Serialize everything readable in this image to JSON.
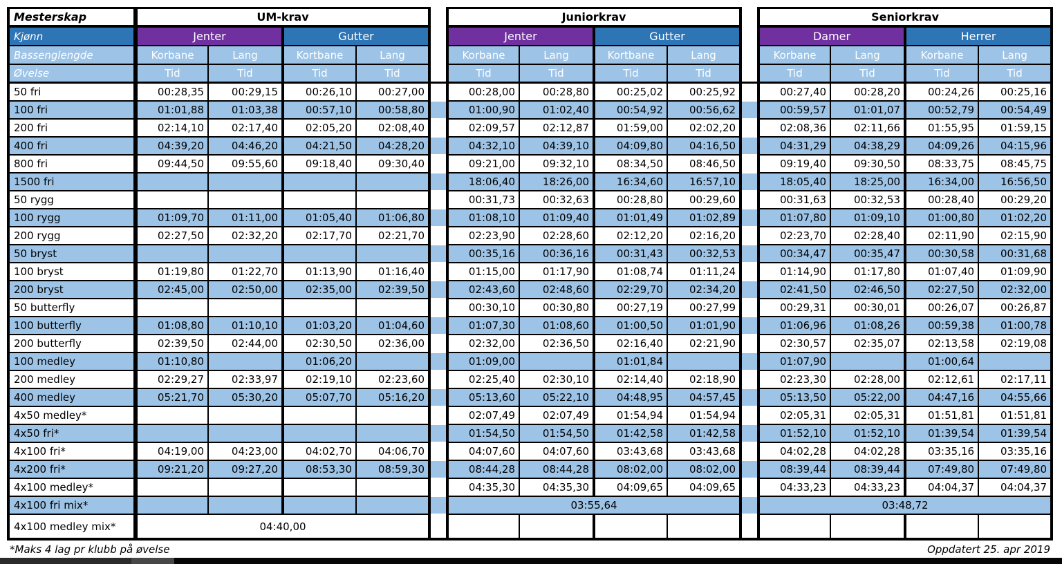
{
  "colors": {
    "purple": "#7030A0",
    "blue": "#2E75B6",
    "light_blue": "#9DC3E6",
    "section_title_bg": "#D9E1F1",
    "border": "#000000"
  },
  "table": {
    "corner_label": "Mesterskap",
    "row2_label": "Kjønn",
    "row3_label": "Bassenglengde",
    "row4_label": "Øvelse",
    "tid_label": "Tid",
    "sections": [
      {
        "title": "UM-krav",
        "groups": [
          {
            "label": "Jenter",
            "accent": "purple",
            "cols": [
              "Korbane",
              "Lang"
            ]
          },
          {
            "label": "Gutter",
            "accent": "blue",
            "cols": [
              "Kortbane",
              "Lang"
            ]
          }
        ]
      },
      {
        "title": "Juniorkrav",
        "groups": [
          {
            "label": "Jenter",
            "accent": "purple",
            "cols": [
              "Korbane",
              "Lang"
            ]
          },
          {
            "label": "Gutter",
            "accent": "blue",
            "cols": [
              "Kortbane",
              "Lang"
            ]
          }
        ]
      },
      {
        "title": "Seniorkrav",
        "groups": [
          {
            "label": "Damer",
            "accent": "purple",
            "cols": [
              "Korbane",
              "Lang"
            ]
          },
          {
            "label": "Herrer",
            "accent": "blue",
            "cols": [
              "Korbane",
              "Lang"
            ]
          }
        ]
      }
    ],
    "rows": [
      {
        "event": "50 fri",
        "um": [
          "00:28,35",
          "00:29,15",
          "00:26,10",
          "00:27,00"
        ],
        "junior": [
          "00:28,00",
          "00:28,80",
          "00:25,02",
          "00:25,92"
        ],
        "senior": [
          "00:27,40",
          "00:28,20",
          "00:24,26",
          "00:25,16"
        ]
      },
      {
        "event": "100 fri",
        "um": [
          "01:01,88",
          "01:03,38",
          "00:57,10",
          "00:58,80"
        ],
        "junior": [
          "01:00,90",
          "01:02,40",
          "00:54,92",
          "00:56,62"
        ],
        "senior": [
          "00:59,57",
          "01:01,07",
          "00:52,79",
          "00:54,49"
        ]
      },
      {
        "event": "200 fri",
        "um": [
          "02:14,10",
          "02:17,40",
          "02:05,20",
          "02:08,40"
        ],
        "junior": [
          "02:09,57",
          "02:12,87",
          "01:59,00",
          "02:02,20"
        ],
        "senior": [
          "02:08,36",
          "02:11,66",
          "01:55,95",
          "01:59,15"
        ]
      },
      {
        "event": "400 fri",
        "um": [
          "04:39,20",
          "04:46,20",
          "04:21,50",
          "04:28,20"
        ],
        "junior": [
          "04:32,10",
          "04:39,10",
          "04:09,80",
          "04:16,50"
        ],
        "senior": [
          "04:31,29",
          "04:38,29",
          "04:09,26",
          "04:15,96"
        ]
      },
      {
        "event": "800 fri",
        "um": [
          "09:44,50",
          "09:55,60",
          "09:18,40",
          "09:30,40"
        ],
        "junior": [
          "09:21,00",
          "09:32,10",
          "08:34,50",
          "08:46,50"
        ],
        "senior": [
          "09:19,40",
          "09:30,50",
          "08:33,75",
          "08:45,75"
        ]
      },
      {
        "event": "1500 fri",
        "um": [
          "",
          "",
          "",
          ""
        ],
        "junior": [
          "18:06,40",
          "18:26,00",
          "16:34,60",
          "16:57,10"
        ],
        "senior": [
          "18:05,40",
          "18:25,00",
          "16:34,00",
          "16:56,50"
        ]
      },
      {
        "event": "50 rygg",
        "um": [
          "",
          "",
          "",
          ""
        ],
        "junior": [
          "00:31,73",
          "00:32,63",
          "00:28,80",
          "00:29,60"
        ],
        "senior": [
          "00:31,63",
          "00:32,53",
          "00:28,40",
          "00:29,20"
        ]
      },
      {
        "event": "100 rygg",
        "um": [
          "01:09,70",
          "01:11,00",
          "01:05,40",
          "01:06,80"
        ],
        "junior": [
          "01:08,10",
          "01:09,40",
          "01:01,49",
          "01:02,89"
        ],
        "senior": [
          "01:07,80",
          "01:09,10",
          "01:00,80",
          "01:02,20"
        ]
      },
      {
        "event": "200 rygg",
        "um": [
          "02:27,50",
          "02:32,20",
          "02:17,70",
          "02:21,70"
        ],
        "junior": [
          "02:23,90",
          "02:28,60",
          "02:12,20",
          "02:16,20"
        ],
        "senior": [
          "02:23,70",
          "02:28,40",
          "02:11,90",
          "02:15,90"
        ]
      },
      {
        "event": "50 bryst",
        "um": [
          "",
          "",
          "",
          ""
        ],
        "junior": [
          "00:35,16",
          "00:36,16",
          "00:31,43",
          "00:32,53"
        ],
        "senior": [
          "00:34,47",
          "00:35,47",
          "00:30,58",
          "00:31,68"
        ]
      },
      {
        "event": "100 bryst",
        "um": [
          "01:19,80",
          "01:22,70",
          "01:13,90",
          "01:16,40"
        ],
        "junior": [
          "01:15,00",
          "01:17,90",
          "01:08,74",
          "01:11,24"
        ],
        "senior": [
          "01:14,90",
          "01:17,80",
          "01:07,40",
          "01:09,90"
        ]
      },
      {
        "event": "200 bryst",
        "um": [
          "02:45,00",
          "02:50,00",
          "02:35,00",
          "02:39,50"
        ],
        "junior": [
          "02:43,60",
          "02:48,60",
          "02:29,70",
          "02:34,20"
        ],
        "senior": [
          "02:41,50",
          "02:46,50",
          "02:27,50",
          "02:32,00"
        ]
      },
      {
        "event": "50 butterfly",
        "um": [
          "",
          "",
          "",
          ""
        ],
        "junior": [
          "00:30,10",
          "00:30,80",
          "00:27,19",
          "00:27,99"
        ],
        "senior": [
          "00:29,31",
          "00:30,01",
          "00:26,07",
          "00:26,87"
        ]
      },
      {
        "event": "100 butterfly",
        "um": [
          "01:08,80",
          "01:10,10",
          "01:03,20",
          "01:04,60"
        ],
        "junior": [
          "01:07,30",
          "01:08,60",
          "01:00,50",
          "01:01,90"
        ],
        "senior": [
          "01:06,96",
          "01:08,26",
          "00:59,38",
          "01:00,78"
        ]
      },
      {
        "event": "200 butterfly",
        "um": [
          "02:39,50",
          "02:44,00",
          "02:30,50",
          "02:36,00"
        ],
        "junior": [
          "02:32,00",
          "02:36,50",
          "02:16,40",
          "02:21,90"
        ],
        "senior": [
          "02:30,57",
          "02:35,07",
          "02:13,58",
          "02:19,08"
        ]
      },
      {
        "event": "100 medley",
        "um": [
          "01:10,80",
          "",
          "01:06,20",
          ""
        ],
        "junior": [
          "01:09,00",
          "",
          "01:01,84",
          ""
        ],
        "senior": [
          "01:07,90",
          "",
          "01:00,64",
          ""
        ]
      },
      {
        "event": "200 medley",
        "um": [
          "02:29,27",
          "02:33,97",
          "02:19,10",
          "02:23,60"
        ],
        "junior": [
          "02:25,40",
          "02:30,10",
          "02:14,40",
          "02:18,90"
        ],
        "senior": [
          "02:23,30",
          "02:28,00",
          "02:12,61",
          "02:17,11"
        ]
      },
      {
        "event": "400 medley",
        "um": [
          "05:21,70",
          "05:30,20",
          "05:07,70",
          "05:16,20"
        ],
        "junior": [
          "05:13,60",
          "05:22,10",
          "04:48,95",
          "04:57,45"
        ],
        "senior": [
          "05:13,50",
          "05:22,00",
          "04:47,16",
          "04:55,66"
        ]
      },
      {
        "event": "4x50 medley*",
        "um": [
          "",
          "",
          "",
          ""
        ],
        "junior": [
          "02:07,49",
          "02:07,49",
          "01:54,94",
          "01:54,94"
        ],
        "senior": [
          "02:05,31",
          "02:05,31",
          "01:51,81",
          "01:51,81"
        ]
      },
      {
        "event": "4x50 fri*",
        "um": [
          "",
          "",
          "",
          ""
        ],
        "junior": [
          "01:54,50",
          "01:54,50",
          "01:42,58",
          "01:42,58"
        ],
        "senior": [
          "01:52,10",
          "01:52,10",
          "01:39,54",
          "01:39,54"
        ]
      },
      {
        "event": "4x100 fri*",
        "um": [
          "04:19,00",
          "04:23,00",
          "04:02,70",
          "04:06,70"
        ],
        "junior": [
          "04:07,60",
          "04:07,60",
          "03:43,68",
          "03:43,68"
        ],
        "senior": [
          "04:02,28",
          "04:02,28",
          "03:35,16",
          "03:35,16"
        ]
      },
      {
        "event": "4x200 fri*",
        "um": [
          "09:21,20",
          "09:27,20",
          "08:53,30",
          "08:59,30"
        ],
        "junior": [
          "08:44,28",
          "08:44,28",
          "08:02,00",
          "08:02,00"
        ],
        "senior": [
          "08:39,44",
          "08:39,44",
          "07:49,80",
          "07:49,80"
        ]
      },
      {
        "event": "4x100 medley*",
        "um": [
          "",
          "",
          "",
          ""
        ],
        "junior": [
          "04:35,30",
          "04:35,30",
          "04:09,65",
          "04:09,65"
        ],
        "senior": [
          "04:33,23",
          "04:33,23",
          "04:04,37",
          "04:04,37"
        ]
      },
      {
        "event": "4x100 fri mix*",
        "um": [
          "",
          "",
          "",
          ""
        ],
        "junior": {
          "merged": "03:55,64"
        },
        "senior": {
          "merged": "03:48,72"
        }
      },
      {
        "event": "4x100 medley mix*",
        "um": {
          "merged": "04:40,00"
        },
        "junior": [
          "",
          "",
          "",
          ""
        ],
        "senior": [
          "",
          "",
          "",
          ""
        ]
      }
    ]
  },
  "footer": {
    "note": "*Maks 4 lag pr klubb på øvelse",
    "updated": "Oppdatert 25. apr 2019"
  }
}
